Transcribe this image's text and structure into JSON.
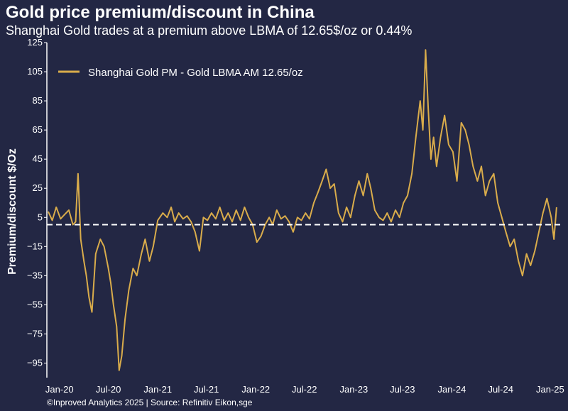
{
  "title": "Gold price premium/discount in China",
  "subtitle": "Shanghai Gold trades at a premium above LBMA of 12.65$/oz or 0.44%",
  "credit": "©Inproved Analytics 2025 | Source: Refinitiv Eikon,sge",
  "colors": {
    "background": "#232744",
    "series": "#d9ac4b",
    "zero_line": "#ffffff",
    "text": "#ffffff"
  },
  "chart_data": {
    "type": "line",
    "title": "Gold price premium/discount in China",
    "ylabel": "Premium/discount $/Oz",
    "xlabel": "",
    "ylim": [
      -105,
      125
    ],
    "yticks": [
      125,
      105,
      85,
      65,
      45,
      25,
      5,
      -15,
      -35,
      -55,
      -75,
      -95
    ],
    "xlim": [
      "2019-11-15",
      "2025-02-10"
    ],
    "xticks": [
      {
        "label": "Jan-20",
        "date": "2020-01-01"
      },
      {
        "label": "Jul-20",
        "date": "2020-07-01"
      },
      {
        "label": "Jan-21",
        "date": "2021-01-01"
      },
      {
        "label": "Jul-21",
        "date": "2021-07-01"
      },
      {
        "label": "Jan-22",
        "date": "2022-01-01"
      },
      {
        "label": "Jul-22",
        "date": "2022-07-01"
      },
      {
        "label": "Jan-23",
        "date": "2023-01-01"
      },
      {
        "label": "Jul-23",
        "date": "2023-07-01"
      },
      {
        "label": "Jan-24",
        "date": "2024-01-01"
      },
      {
        "label": "Jul-24",
        "date": "2024-07-01"
      },
      {
        "label": "Jan-25",
        "date": "2025-01-01"
      }
    ],
    "grid": false,
    "legend_position": "top-left",
    "reference_line": {
      "y": 0,
      "style": "dashed"
    },
    "series": [
      {
        "name": "Shanghai Gold PM - Gold LBMA AM 12.65/oz",
        "color": "#d9ac4b",
        "points": [
          [
            "2019-11-20",
            9
          ],
          [
            "2019-12-05",
            3
          ],
          [
            "2019-12-20",
            12
          ],
          [
            "2020-01-05",
            4
          ],
          [
            "2020-01-20",
            7
          ],
          [
            "2020-02-05",
            10
          ],
          [
            "2020-02-20",
            0
          ],
          [
            "2020-03-01",
            2
          ],
          [
            "2020-03-10",
            35
          ],
          [
            "2020-03-20",
            -10
          ],
          [
            "2020-04-01",
            -25
          ],
          [
            "2020-04-10",
            -35
          ],
          [
            "2020-04-20",
            -50
          ],
          [
            "2020-05-01",
            -60
          ],
          [
            "2020-05-15",
            -20
          ],
          [
            "2020-06-01",
            -10
          ],
          [
            "2020-06-15",
            -15
          ],
          [
            "2020-07-01",
            -30
          ],
          [
            "2020-07-10",
            -40
          ],
          [
            "2020-07-20",
            -55
          ],
          [
            "2020-08-01",
            -70
          ],
          [
            "2020-08-10",
            -100
          ],
          [
            "2020-08-20",
            -90
          ],
          [
            "2020-09-01",
            -65
          ],
          [
            "2020-09-15",
            -45
          ],
          [
            "2020-10-01",
            -30
          ],
          [
            "2020-10-15",
            -35
          ],
          [
            "2020-11-01",
            -20
          ],
          [
            "2020-11-15",
            -10
          ],
          [
            "2020-12-01",
            -25
          ],
          [
            "2020-12-15",
            -15
          ],
          [
            "2021-01-01",
            3
          ],
          [
            "2021-01-20",
            8
          ],
          [
            "2021-02-05",
            5
          ],
          [
            "2021-02-20",
            12
          ],
          [
            "2021-03-05",
            2
          ],
          [
            "2021-03-20",
            8
          ],
          [
            "2021-04-05",
            4
          ],
          [
            "2021-04-20",
            6
          ],
          [
            "2021-05-05",
            2
          ],
          [
            "2021-05-20",
            -5
          ],
          [
            "2021-06-05",
            -18
          ],
          [
            "2021-06-20",
            5
          ],
          [
            "2021-07-05",
            3
          ],
          [
            "2021-07-20",
            8
          ],
          [
            "2021-08-05",
            4
          ],
          [
            "2021-08-20",
            12
          ],
          [
            "2021-09-05",
            3
          ],
          [
            "2021-09-20",
            8
          ],
          [
            "2021-10-05",
            2
          ],
          [
            "2021-10-20",
            10
          ],
          [
            "2021-11-05",
            3
          ],
          [
            "2021-11-20",
            12
          ],
          [
            "2021-12-05",
            5
          ],
          [
            "2021-12-20",
            0
          ],
          [
            "2022-01-05",
            -12
          ],
          [
            "2022-01-20",
            -8
          ],
          [
            "2022-02-05",
            0
          ],
          [
            "2022-02-20",
            5
          ],
          [
            "2022-03-05",
            0
          ],
          [
            "2022-03-20",
            10
          ],
          [
            "2022-04-05",
            4
          ],
          [
            "2022-04-20",
            6
          ],
          [
            "2022-05-05",
            2
          ],
          [
            "2022-05-20",
            -5
          ],
          [
            "2022-06-05",
            5
          ],
          [
            "2022-06-20",
            3
          ],
          [
            "2022-07-05",
            8
          ],
          [
            "2022-07-20",
            4
          ],
          [
            "2022-08-05",
            15
          ],
          [
            "2022-08-20",
            22
          ],
          [
            "2022-09-05",
            30
          ],
          [
            "2022-09-20",
            38
          ],
          [
            "2022-10-05",
            25
          ],
          [
            "2022-10-20",
            28
          ],
          [
            "2022-11-05",
            8
          ],
          [
            "2022-11-20",
            2
          ],
          [
            "2022-12-05",
            12
          ],
          [
            "2022-12-20",
            5
          ],
          [
            "2023-01-05",
            20
          ],
          [
            "2023-01-20",
            30
          ],
          [
            "2023-02-05",
            20
          ],
          [
            "2023-02-20",
            35
          ],
          [
            "2023-03-05",
            25
          ],
          [
            "2023-03-20",
            10
          ],
          [
            "2023-04-05",
            5
          ],
          [
            "2023-04-20",
            3
          ],
          [
            "2023-05-05",
            8
          ],
          [
            "2023-05-20",
            2
          ],
          [
            "2023-06-05",
            10
          ],
          [
            "2023-06-20",
            5
          ],
          [
            "2023-07-05",
            15
          ],
          [
            "2023-07-20",
            20
          ],
          [
            "2023-08-05",
            35
          ],
          [
            "2023-08-20",
            60
          ],
          [
            "2023-09-05",
            85
          ],
          [
            "2023-09-15",
            65
          ],
          [
            "2023-09-25",
            120
          ],
          [
            "2023-10-05",
            80
          ],
          [
            "2023-10-15",
            45
          ],
          [
            "2023-10-25",
            60
          ],
          [
            "2023-11-05",
            40
          ],
          [
            "2023-11-20",
            60
          ],
          [
            "2023-12-05",
            75
          ],
          [
            "2023-12-20",
            55
          ],
          [
            "2024-01-05",
            50
          ],
          [
            "2024-01-20",
            30
          ],
          [
            "2024-02-05",
            70
          ],
          [
            "2024-02-20",
            65
          ],
          [
            "2024-03-05",
            55
          ],
          [
            "2024-03-20",
            40
          ],
          [
            "2024-04-05",
            30
          ],
          [
            "2024-04-20",
            40
          ],
          [
            "2024-05-05",
            20
          ],
          [
            "2024-05-20",
            30
          ],
          [
            "2024-06-05",
            35
          ],
          [
            "2024-06-20",
            15
          ],
          [
            "2024-07-05",
            5
          ],
          [
            "2024-07-20",
            -5
          ],
          [
            "2024-08-05",
            -15
          ],
          [
            "2024-08-20",
            -10
          ],
          [
            "2024-09-05",
            -25
          ],
          [
            "2024-09-20",
            -35
          ],
          [
            "2024-10-05",
            -20
          ],
          [
            "2024-10-20",
            -28
          ],
          [
            "2024-11-05",
            -18
          ],
          [
            "2024-11-20",
            -5
          ],
          [
            "2024-12-05",
            8
          ],
          [
            "2024-12-20",
            18
          ],
          [
            "2025-01-05",
            5
          ],
          [
            "2025-01-15",
            -10
          ],
          [
            "2025-01-25",
            12
          ]
        ]
      }
    ]
  }
}
